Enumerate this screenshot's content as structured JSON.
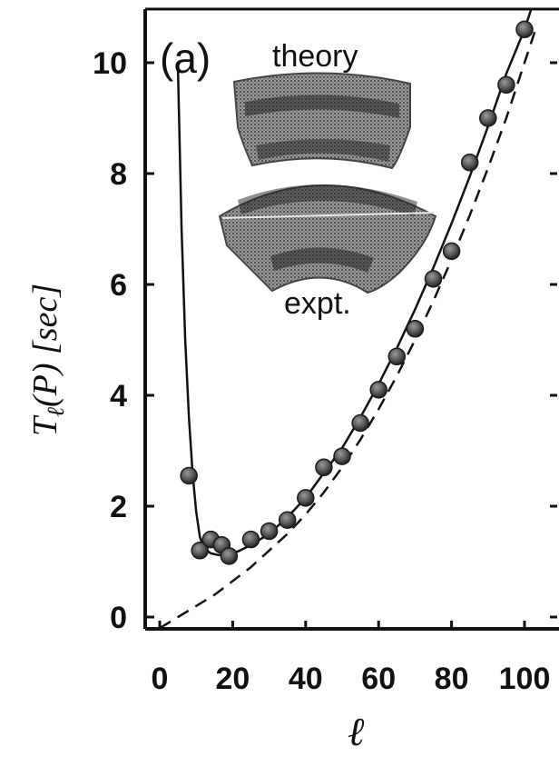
{
  "chart_data": {
    "type": "scatter",
    "panel_label": "(a)",
    "xlabel": "ℓ",
    "ylabel_main": "T",
    "ylabel_sub": "ℓ",
    "ylabel_rest": "(P) [sec]",
    "xlim": [
      0,
      105
    ],
    "ylim": [
      0,
      10.8
    ],
    "x_ticks": [
      0,
      20,
      40,
      60,
      80,
      100
    ],
    "x_tick_labels": [
      "0",
      "20",
      "40",
      "60",
      "80",
      "100"
    ],
    "y_ticks": [
      0,
      2,
      4,
      6,
      8,
      10
    ],
    "y_tick_labels": [
      "0",
      "2",
      "4",
      "6",
      "8",
      "10"
    ],
    "inset": {
      "top_label": "theory",
      "bottom_label": "expt."
    },
    "series": [
      {
        "kind": "points",
        "x": [
          8,
          11,
          14,
          17,
          19,
          25,
          30,
          35,
          40,
          45,
          50,
          55,
          60,
          65,
          70,
          75,
          80,
          85,
          90,
          95,
          100
        ],
        "y": [
          2.55,
          1.2,
          1.4,
          1.3,
          1.1,
          1.4,
          1.55,
          1.75,
          2.15,
          2.7,
          2.9,
          3.5,
          4.1,
          4.7,
          5.2,
          6.1,
          6.6,
          8.2,
          9.0,
          9.6,
          10.6
        ]
      },
      {
        "kind": "solid-line",
        "x": [
          5,
          6,
          7,
          8,
          9,
          10,
          11,
          12,
          14,
          16,
          18,
          20,
          22,
          25,
          30,
          35,
          40,
          45,
          50,
          55,
          60,
          65,
          70,
          75,
          80,
          85,
          90,
          95,
          100,
          103
        ],
        "y": [
          9.9,
          7.0,
          5.0,
          3.6,
          2.6,
          1.9,
          1.45,
          1.25,
          1.15,
          1.12,
          1.12,
          1.15,
          1.2,
          1.3,
          1.5,
          1.8,
          2.15,
          2.6,
          3.05,
          3.6,
          4.2,
          4.85,
          5.55,
          6.3,
          7.1,
          7.95,
          8.85,
          9.8,
          10.6,
          11.2
        ]
      },
      {
        "kind": "dashed-line",
        "x": [
          0,
          5,
          10,
          15,
          20,
          25,
          30,
          35,
          40,
          45,
          50,
          55,
          60,
          65,
          70,
          75,
          80,
          85,
          90,
          95,
          100,
          103
        ],
        "y": [
          -0.2,
          0.0,
          0.2,
          0.4,
          0.65,
          0.9,
          1.2,
          1.5,
          1.85,
          2.25,
          2.7,
          3.2,
          3.75,
          4.35,
          5.0,
          5.7,
          6.45,
          7.25,
          8.1,
          9.0,
          10.0,
          10.6
        ]
      }
    ]
  }
}
